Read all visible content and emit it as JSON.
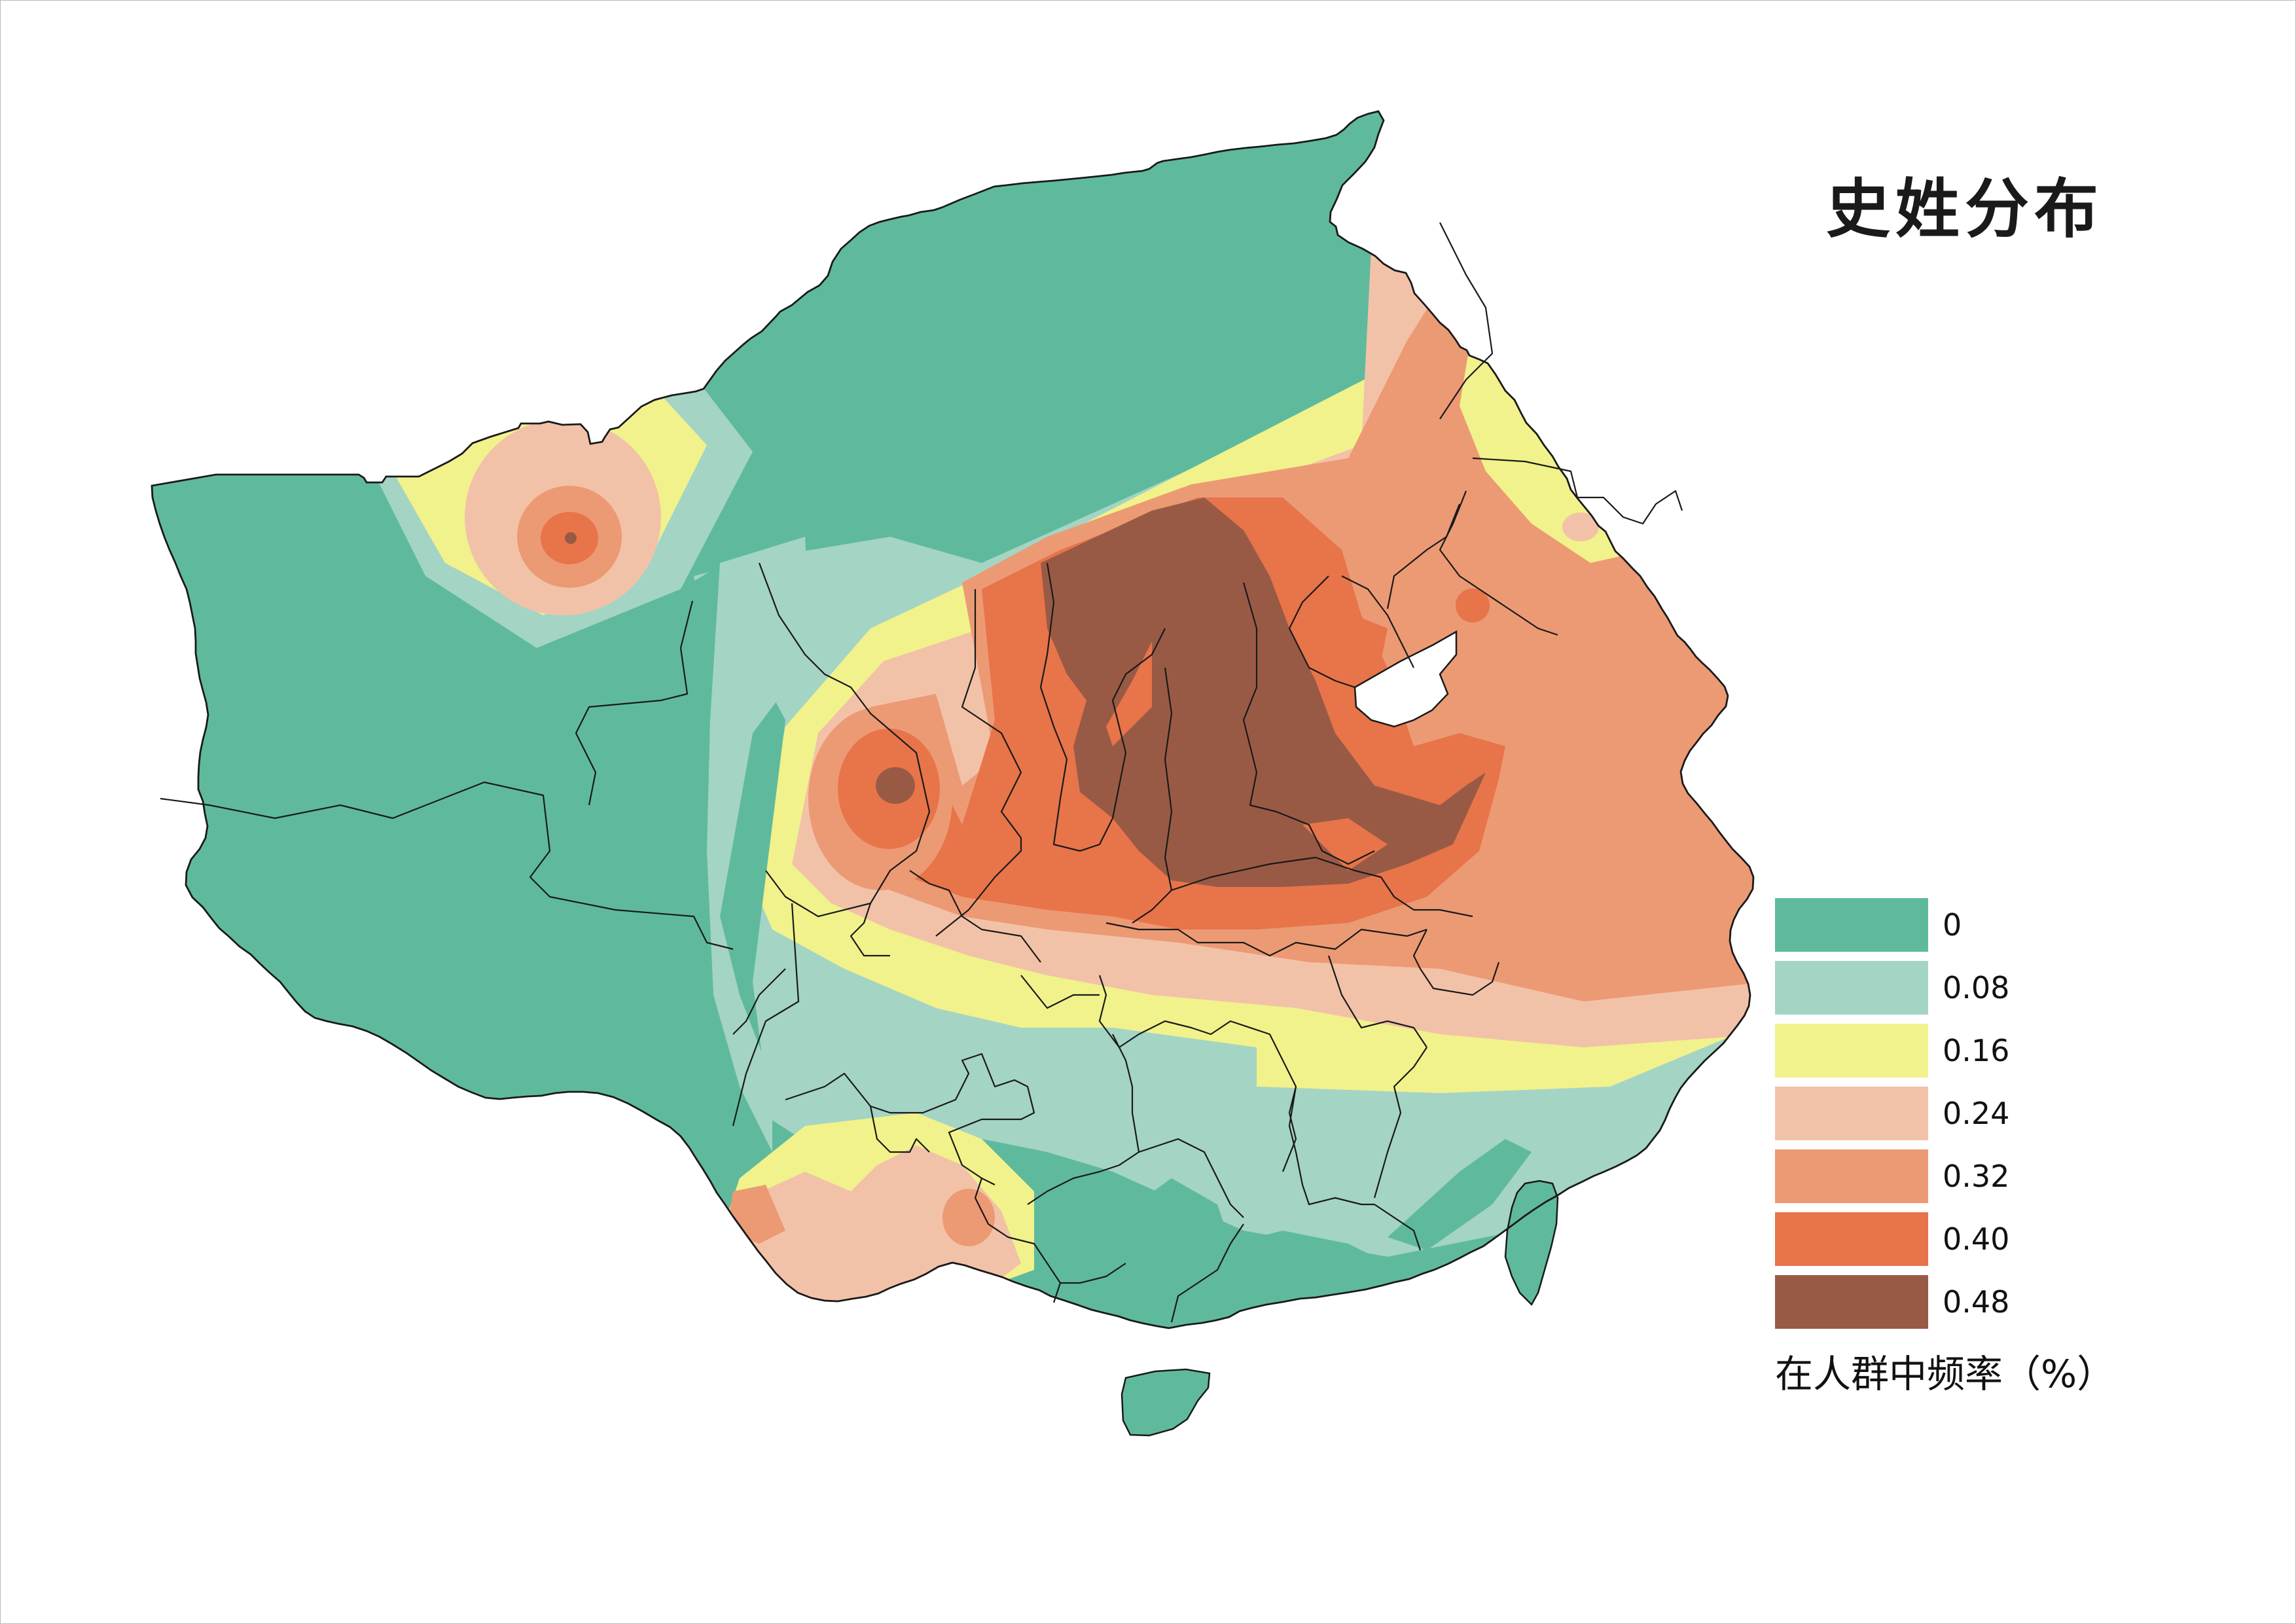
{
  "map": {
    "title": "史姓分布",
    "legend": {
      "caption": "在人群中频率（%）",
      "classes": [
        {
          "label": "0",
          "color": "#5fba9d"
        },
        {
          "label": "0.08",
          "color": "#a4d4c4"
        },
        {
          "label": "0.16",
          "color": "#f1f28b"
        },
        {
          "label": "0.24",
          "color": "#f2c2a8"
        },
        {
          "label": "0.32",
          "color": "#ec9a74"
        },
        {
          "label": "0.40",
          "color": "#e8744a"
        },
        {
          "label": "0.48",
          "color": "#995a45"
        }
      ]
    },
    "colors": {
      "nodata": "#ffffff",
      "border": "#1a1a1a",
      "sea": "#ffffff"
    }
  }
}
